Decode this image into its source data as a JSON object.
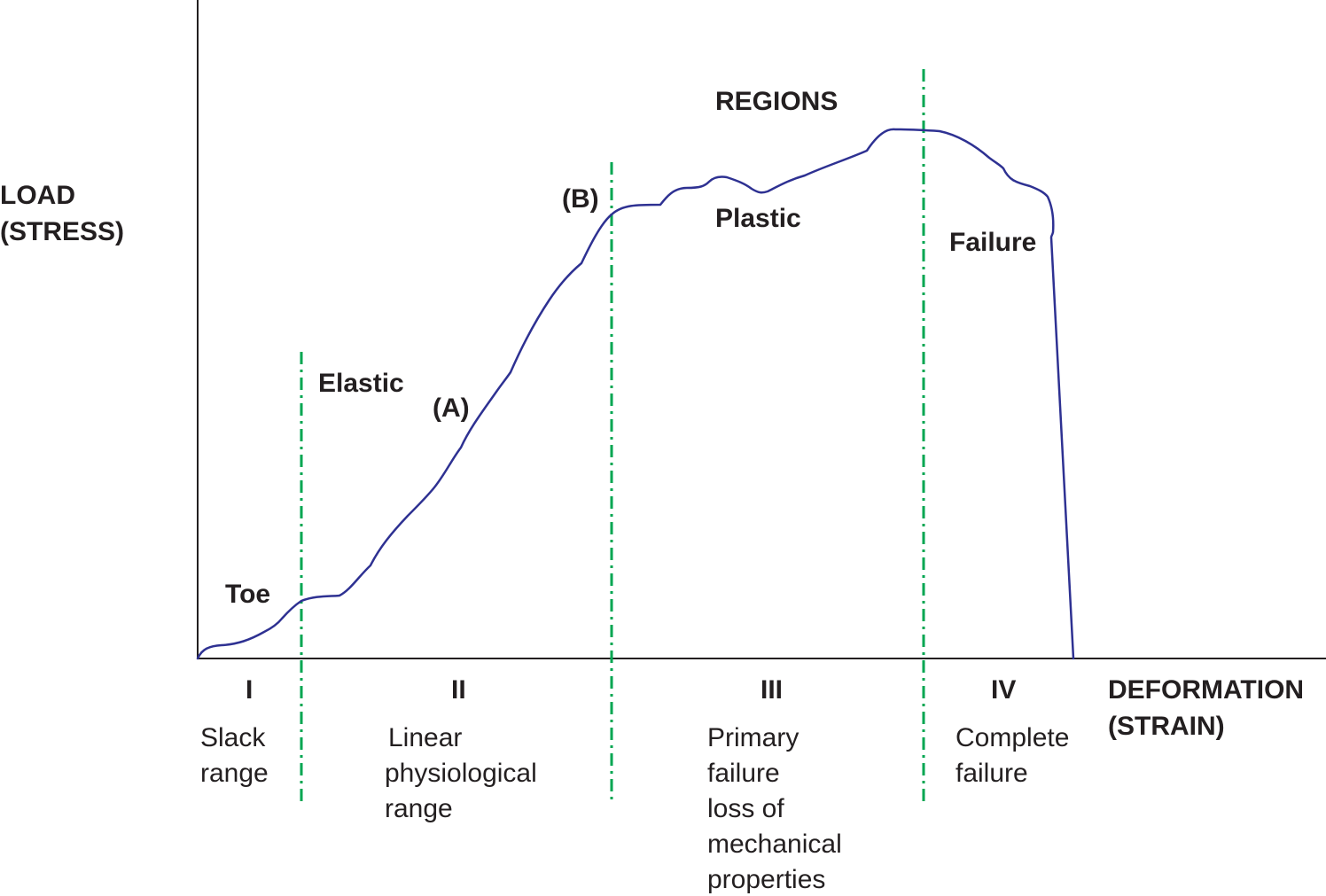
{
  "axes": {
    "y_label": "LOAD\n(STRESS)",
    "x_label": "DEFORMATION\n(STRAIN)"
  },
  "heading": "REGIONS",
  "curve_labels": {
    "toe": "Toe",
    "elastic": "Elastic",
    "point_a": "(A)",
    "point_b": "(B)",
    "plastic": "Plastic",
    "failure": "Failure"
  },
  "regions": [
    {
      "numeral": "I",
      "description": "Slack\nrange"
    },
    {
      "numeral": "II",
      "description": "Linear\nphysiological\nrange"
    },
    {
      "numeral": "III",
      "description": "Primary\nfailure\nloss of\nmechanical\nproperties"
    },
    {
      "numeral": "IV",
      "description": "Complete\nfailure"
    }
  ],
  "colors": {
    "curve": "#2e3192",
    "divider": "#00a651",
    "axis": "#231f20",
    "text": "#231f20"
  }
}
